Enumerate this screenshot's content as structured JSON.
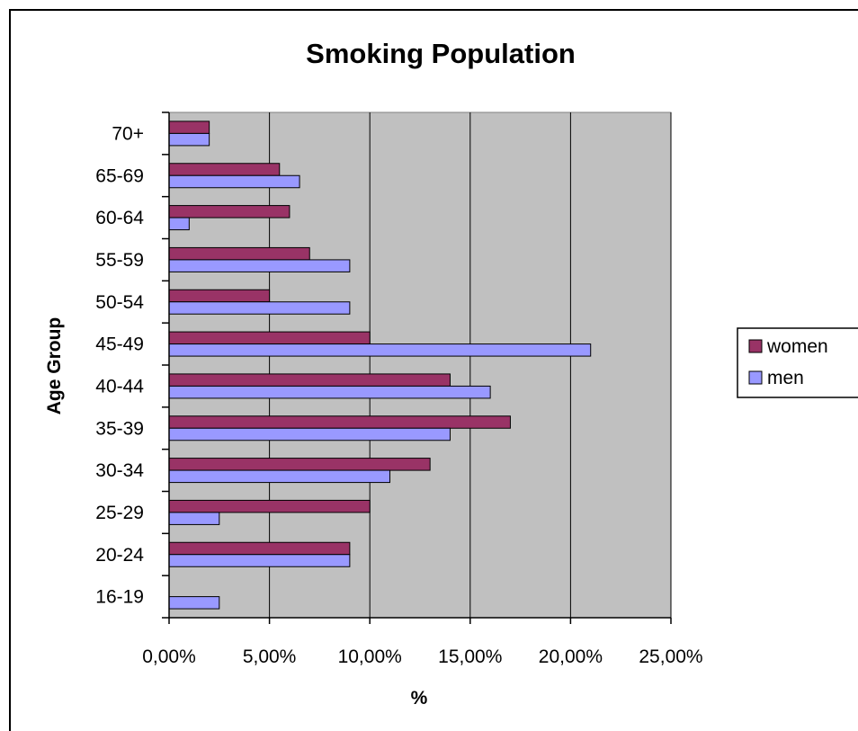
{
  "chart_data": {
    "type": "bar",
    "orientation": "horizontal",
    "title": "Smoking Population",
    "xlabel": "%",
    "ylabel": "Age Group",
    "categories": [
      "16-19",
      "20-24",
      "25-29",
      "30-34",
      "35-39",
      "40-44",
      "45-49",
      "50-54",
      "55-59",
      "60-64",
      "65-69",
      "70+"
    ],
    "series": [
      {
        "name": "women",
        "color": "#993366",
        "values": [
          0,
          9,
          10,
          13,
          17,
          14,
          10,
          5,
          7,
          6,
          5.5,
          2
        ]
      },
      {
        "name": "men",
        "color": "#9999ff",
        "values": [
          2.5,
          9,
          2.5,
          11,
          14,
          16,
          21,
          9,
          9,
          1,
          6.5,
          2
        ]
      }
    ],
    "xlim": [
      0,
      25
    ],
    "xticks": [
      "0,00%",
      "5,00%",
      "10,00%",
      "15,00%",
      "20,00%",
      "25,00%"
    ],
    "grid": true,
    "plot_background": "#c0c0c0",
    "legend_position": "right"
  }
}
